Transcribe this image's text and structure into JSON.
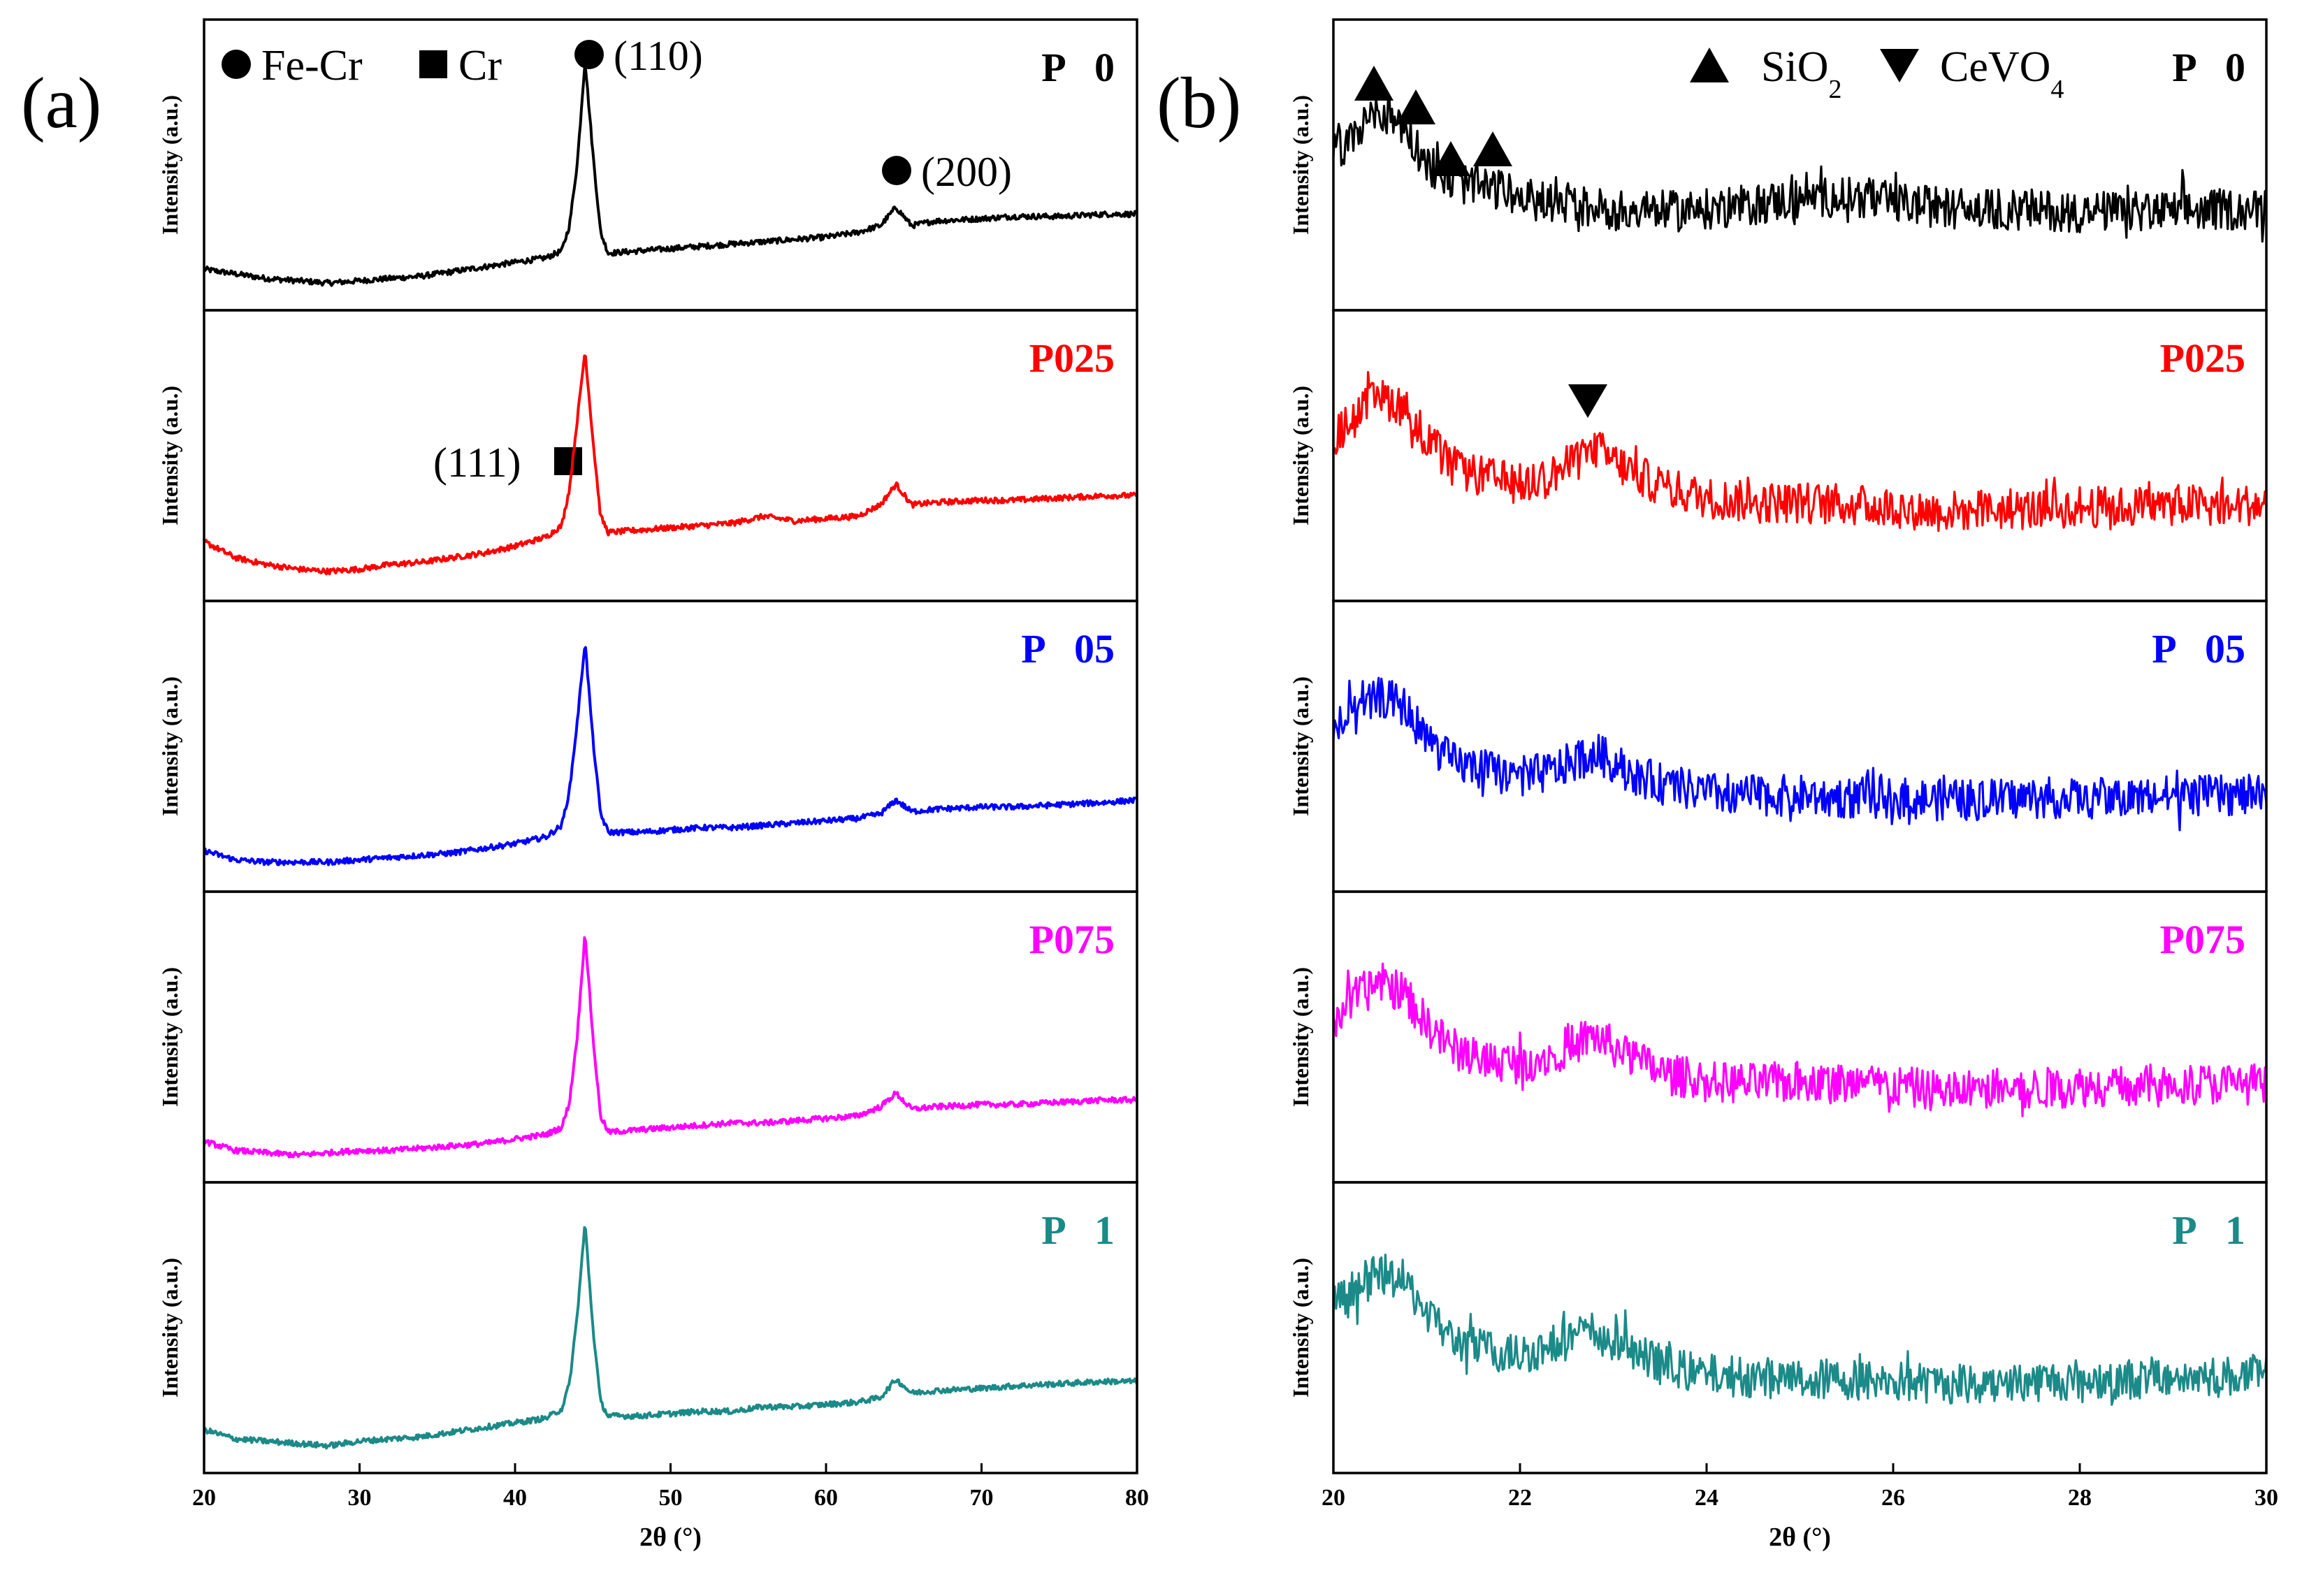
{
  "panel_labels": {
    "a": "(a)",
    "b": "(b)"
  },
  "legend": {
    "a": {
      "fe_cr": "Fe-Cr",
      "cr": "Cr"
    },
    "b": {
      "sio2_base": "SiO",
      "sio2_sub": "2",
      "cevo4_base": "CeVO",
      "cevo4_sub": "4"
    }
  },
  "annotations": {
    "peak110": "(110)",
    "peak200": "(200)",
    "peak111": "(111)"
  },
  "chart_data": [
    {
      "type": "line",
      "panel": "a",
      "title": "",
      "xlabel": "2θ (°)",
      "ylabel": "Intensity (a.u.)",
      "xlim": [
        20,
        80
      ],
      "xticks": [
        "20",
        "30",
        "40",
        "50",
        "60",
        "70",
        "80"
      ],
      "series": [
        {
          "name": "P   0",
          "color": "#000000",
          "x": [
            20,
            22,
            24,
            26,
            28,
            30,
            32,
            34,
            36,
            38,
            40,
            42,
            43,
            43.5,
            44,
            44.5,
            45,
            45.5,
            46,
            48,
            50,
            52,
            54,
            56,
            58,
            60,
            62,
            63.5,
            64.5,
            65.5,
            67,
            70,
            72,
            75,
            78,
            80
          ],
          "y": [
            0.09,
            0.07,
            0.05,
            0.04,
            0.03,
            0.04,
            0.05,
            0.06,
            0.08,
            0.1,
            0.12,
            0.14,
            0.17,
            0.28,
            0.55,
            1.0,
            0.6,
            0.25,
            0.16,
            0.17,
            0.18,
            0.19,
            0.2,
            0.21,
            0.22,
            0.23,
            0.25,
            0.28,
            0.36,
            0.28,
            0.3,
            0.31,
            0.32,
            0.32,
            0.33,
            0.33
          ]
        },
        {
          "name": "P025",
          "color": "#ff0000",
          "x": [
            20,
            22,
            24,
            26,
            28,
            30,
            32,
            34,
            36,
            38,
            40,
            42,
            43,
            43.5,
            44,
            44.5,
            45,
            45.5,
            46,
            48,
            50,
            52,
            54,
            56,
            58,
            60,
            62,
            63.5,
            64.5,
            65.5,
            67,
            70,
            72,
            75,
            78,
            80
          ],
          "y": [
            0.17,
            0.1,
            0.07,
            0.05,
            0.04,
            0.05,
            0.07,
            0.08,
            0.1,
            0.12,
            0.15,
            0.19,
            0.24,
            0.4,
            0.7,
            1.0,
            0.62,
            0.28,
            0.21,
            0.22,
            0.23,
            0.24,
            0.25,
            0.28,
            0.26,
            0.27,
            0.28,
            0.33,
            0.42,
            0.33,
            0.34,
            0.35,
            0.35,
            0.36,
            0.37,
            0.37
          ]
        },
        {
          "name": "P   05",
          "color": "#0000ff",
          "x": [
            20,
            22,
            24,
            26,
            28,
            30,
            32,
            34,
            36,
            38,
            40,
            42,
            43,
            43.5,
            44,
            44.5,
            45,
            45.5,
            46,
            48,
            50,
            52,
            54,
            56,
            58,
            60,
            62,
            63.5,
            64.5,
            65.5,
            67,
            70,
            72,
            75,
            78,
            80
          ],
          "y": [
            0.09,
            0.05,
            0.04,
            0.04,
            0.04,
            0.05,
            0.06,
            0.07,
            0.08,
            0.1,
            0.12,
            0.15,
            0.2,
            0.35,
            0.65,
            1.0,
            0.58,
            0.25,
            0.17,
            0.17,
            0.18,
            0.19,
            0.19,
            0.2,
            0.21,
            0.22,
            0.23,
            0.25,
            0.31,
            0.26,
            0.27,
            0.28,
            0.28,
            0.29,
            0.3,
            0.31
          ]
        },
        {
          "name": "P075",
          "color": "#ff00ff",
          "x": [
            20,
            22,
            24,
            26,
            28,
            30,
            32,
            34,
            36,
            38,
            40,
            42,
            43,
            43.5,
            44,
            44.5,
            45,
            45.5,
            46,
            48,
            50,
            52,
            54,
            56,
            58,
            60,
            62,
            63.5,
            64.5,
            65.5,
            67,
            70,
            72,
            75,
            78,
            80
          ],
          "y": [
            0.09,
            0.05,
            0.04,
            0.03,
            0.04,
            0.05,
            0.05,
            0.06,
            0.07,
            0.08,
            0.1,
            0.12,
            0.15,
            0.26,
            0.55,
            1.0,
            0.55,
            0.2,
            0.13,
            0.14,
            0.15,
            0.16,
            0.17,
            0.17,
            0.18,
            0.19,
            0.2,
            0.24,
            0.3,
            0.23,
            0.24,
            0.25,
            0.25,
            0.26,
            0.27,
            0.27
          ]
        },
        {
          "name": "P   1",
          "color": "#1b8a88",
          "x": [
            20,
            22,
            24,
            26,
            28,
            30,
            32,
            34,
            36,
            38,
            40,
            42,
            43,
            43.5,
            44,
            44.5,
            45,
            45.5,
            46,
            48,
            50,
            52,
            54,
            56,
            58,
            60,
            62,
            63.5,
            64.5,
            65.5,
            67,
            70,
            72,
            75,
            78,
            80
          ],
          "y": [
            0.1,
            0.06,
            0.05,
            0.04,
            0.03,
            0.05,
            0.06,
            0.07,
            0.09,
            0.11,
            0.13,
            0.15,
            0.19,
            0.3,
            0.6,
            1.0,
            0.55,
            0.22,
            0.16,
            0.16,
            0.17,
            0.18,
            0.18,
            0.2,
            0.2,
            0.21,
            0.22,
            0.24,
            0.32,
            0.26,
            0.27,
            0.28,
            0.29,
            0.3,
            0.31,
            0.31
          ]
        }
      ]
    },
    {
      "type": "line",
      "panel": "b",
      "title": "",
      "xlabel": "2θ (°)",
      "ylabel": "Intensity (a.u.)",
      "xlim": [
        20,
        30
      ],
      "xticks": [
        "20",
        "22",
        "24",
        "26",
        "28",
        "30"
      ],
      "series": [
        {
          "name": "P   0",
          "color": "#000000",
          "x": [
            20,
            20.25,
            20.5,
            20.75,
            21,
            21.25,
            21.5,
            21.75,
            22,
            22.5,
            23,
            23.5,
            24,
            24.5,
            25,
            25.5,
            26,
            26.5,
            27,
            27.5,
            28,
            28.5,
            29,
            29.5,
            30
          ],
          "y": [
            0.6,
            0.68,
            0.78,
            0.72,
            0.55,
            0.48,
            0.45,
            0.44,
            0.4,
            0.37,
            0.35,
            0.34,
            0.35,
            0.37,
            0.4,
            0.41,
            0.38,
            0.36,
            0.35,
            0.35,
            0.34,
            0.34,
            0.34,
            0.35,
            0.35
          ]
        },
        {
          "name": "P025",
          "color": "#ff0000",
          "x": [
            20,
            20.25,
            20.5,
            20.75,
            21,
            21.25,
            21.5,
            21.75,
            22,
            22.3,
            22.6,
            22.8,
            23,
            23.3,
            23.6,
            24,
            24.5,
            25,
            25.5,
            26,
            26.5,
            27,
            27.5,
            28,
            28.5,
            29,
            29.5,
            30
          ],
          "y": [
            0.62,
            0.72,
            0.8,
            0.76,
            0.62,
            0.5,
            0.46,
            0.44,
            0.42,
            0.45,
            0.52,
            0.58,
            0.52,
            0.45,
            0.4,
            0.36,
            0.34,
            0.34,
            0.33,
            0.32,
            0.3,
            0.31,
            0.31,
            0.32,
            0.32,
            0.33,
            0.33,
            0.33
          ]
        },
        {
          "name": "P   05",
          "color": "#0000ff",
          "x": [
            20,
            20.25,
            20.5,
            20.75,
            21,
            21.25,
            21.5,
            21.75,
            22,
            22.3,
            22.6,
            22.8,
            23,
            23.3,
            23.6,
            24,
            24.5,
            25,
            25.5,
            26,
            26.5,
            27,
            27.5,
            28,
            28.5,
            29,
            29.5,
            30
          ],
          "y": [
            0.62,
            0.68,
            0.76,
            0.72,
            0.58,
            0.48,
            0.45,
            0.43,
            0.41,
            0.43,
            0.48,
            0.52,
            0.47,
            0.41,
            0.37,
            0.34,
            0.33,
            0.33,
            0.32,
            0.32,
            0.31,
            0.31,
            0.32,
            0.32,
            0.32,
            0.33,
            0.33,
            0.33
          ]
        },
        {
          "name": "P075",
          "color": "#ff00ff",
          "x": [
            20,
            20.25,
            20.5,
            20.75,
            21,
            21.25,
            21.5,
            21.75,
            22,
            22.3,
            22.6,
            22.8,
            23,
            23.3,
            23.6,
            24,
            24.5,
            25,
            25.5,
            26,
            26.5,
            27,
            27.5,
            28,
            28.5,
            29,
            29.5,
            30
          ],
          "y": [
            0.62,
            0.72,
            0.78,
            0.74,
            0.6,
            0.5,
            0.46,
            0.44,
            0.43,
            0.46,
            0.52,
            0.55,
            0.5,
            0.43,
            0.38,
            0.35,
            0.34,
            0.35,
            0.34,
            0.33,
            0.31,
            0.32,
            0.32,
            0.33,
            0.33,
            0.34,
            0.34,
            0.34
          ]
        },
        {
          "name": "P   1",
          "color": "#1b8a88",
          "x": [
            20,
            20.25,
            20.5,
            20.75,
            21,
            21.25,
            21.5,
            21.75,
            22,
            22.3,
            22.6,
            22.8,
            23,
            23.3,
            23.6,
            24,
            24.5,
            25,
            25.5,
            26,
            26.5,
            27,
            27.5,
            28,
            28.5,
            29,
            29.5,
            30
          ],
          "y": [
            0.64,
            0.72,
            0.78,
            0.75,
            0.62,
            0.5,
            0.46,
            0.44,
            0.43,
            0.46,
            0.51,
            0.53,
            0.48,
            0.42,
            0.37,
            0.34,
            0.33,
            0.32,
            0.32,
            0.31,
            0.3,
            0.31,
            0.31,
            0.32,
            0.32,
            0.33,
            0.33,
            0.34
          ]
        }
      ]
    }
  ]
}
